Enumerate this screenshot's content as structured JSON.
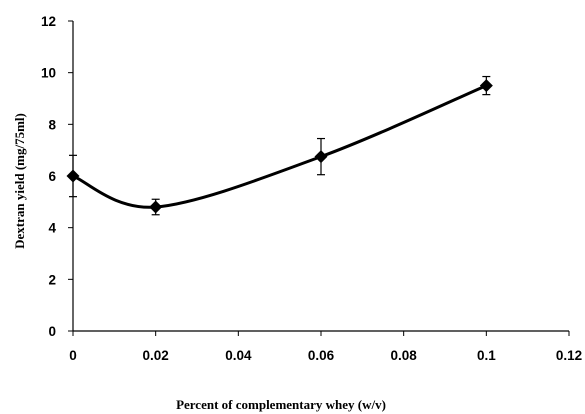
{
  "chart_data": {
    "type": "line",
    "title": "",
    "xlabel": "Percent of complementary whey (w/v)",
    "ylabel": "Dextran yield (mg/75ml)",
    "xlim": [
      0,
      0.12
    ],
    "ylim": [
      0,
      12
    ],
    "x_ticks": [
      "0",
      "0.02",
      "0.04",
      "0.06",
      "0.08",
      "0.1",
      "0.12"
    ],
    "y_ticks": [
      "0",
      "2",
      "4",
      "6",
      "8",
      "10",
      "12"
    ],
    "grid": false,
    "legend": "none",
    "smooth": true,
    "marker": "diamond",
    "color": "#000000",
    "series": [
      {
        "x": [
          0,
          0.02,
          0.06,
          0.1
        ],
        "y": [
          6.0,
          4.8,
          6.75,
          9.5
        ],
        "error": [
          0.8,
          0.3,
          0.7,
          0.35
        ]
      }
    ]
  }
}
